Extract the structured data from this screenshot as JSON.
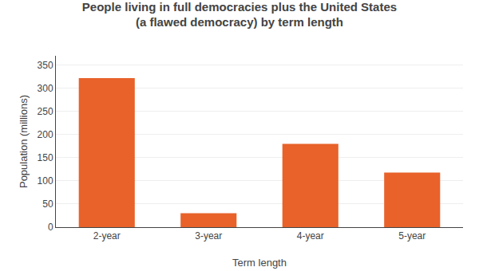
{
  "chart_data": {
    "type": "bar",
    "title": "People living in full democracies plus the United States\n(a flawed democracy) by term length",
    "xlabel": "Term length",
    "ylabel": "Population (millions)",
    "categories": [
      "2-year",
      "3-year",
      "4-year",
      "5-year"
    ],
    "values": [
      322,
      30,
      180,
      118
    ],
    "color": "#E8622A",
    "ylim": [
      0,
      370
    ],
    "yticks": [
      0,
      50,
      100,
      150,
      200,
      250,
      300,
      350
    ],
    "grid": true
  }
}
